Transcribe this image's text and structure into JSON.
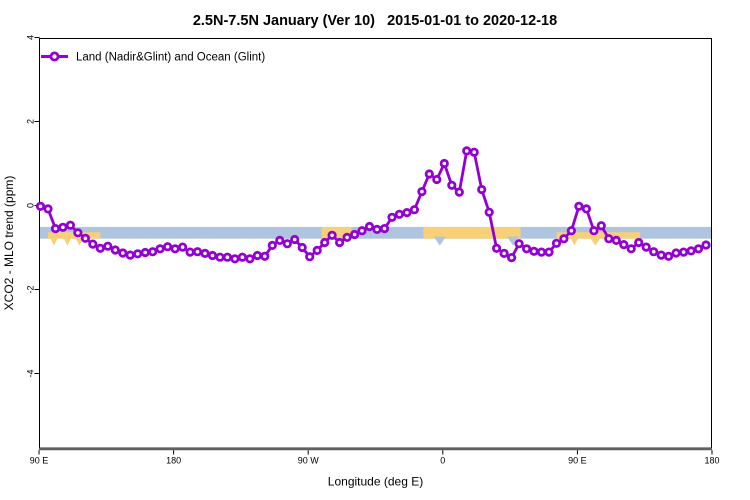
{
  "title": "2.5N-7.5N January (Ver 10)   2015-01-01 to 2020-12-18",
  "legend": {
    "label": "Land (Nadir&Glint) and Ocean (Glint)",
    "marker": "open-circle",
    "color": "#9400D3",
    "position": "top-left"
  },
  "axes": {
    "x": {
      "label": "Longitude (deg E)",
      "ticks": [
        {
          "pos": 0,
          "label": "90 E"
        },
        {
          "pos": 90,
          "label": "180"
        },
        {
          "pos": 180,
          "label": "90 W"
        },
        {
          "pos": 270,
          "label": "0"
        },
        {
          "pos": 360,
          "label": "90 E"
        },
        {
          "pos": 450,
          "label": "180"
        }
      ]
    },
    "y": {
      "label": "XCO2 - MLO trend (ppm)",
      "ticks": [
        {
          "val": 4,
          "label": "4"
        },
        {
          "val": 2,
          "label": "2"
        },
        {
          "val": 0,
          "label": "0"
        },
        {
          "val": -2,
          "label": "-2"
        },
        {
          "val": -4,
          "label": "-4"
        }
      ]
    }
  },
  "colors": {
    "series": "#9400D3",
    "ocean_band": "#AFC4DE",
    "land_band": "#F8D078",
    "bottom_axis_line": "#606060",
    "frame": "#000000"
  },
  "chart_data": {
    "type": "line",
    "title": "2.5N-7.5N January (Ver 10)   2015-01-01 to 2020-12-18",
    "xlabel": "Longitude (deg E)",
    "ylabel": "XCO2 - MLO trend (ppm)",
    "x_axis_note": "x = degrees eastward along axis from left edge; axis starts at 90E and wraps 90E -> 180 -> 90W -> 0 -> 90E -> 180",
    "xlim": [
      0,
      450
    ],
    "ylim": [
      -5.76,
      4.0
    ],
    "yticks": [
      4,
      2,
      0,
      -2,
      -4
    ],
    "grid": false,
    "legend_position": "top-left",
    "x": [
      1,
      6,
      11,
      16,
      21,
      26,
      31,
      36,
      41,
      46,
      51,
      56,
      61,
      66,
      71,
      76,
      81,
      86,
      91,
      96,
      101,
      106,
      111,
      116,
      121,
      126,
      131,
      136,
      141,
      146,
      151,
      156,
      161,
      166,
      171,
      176,
      181,
      186,
      191,
      196,
      201,
      206,
      211,
      216,
      221,
      226,
      231,
      236,
      241,
      246,
      251,
      256,
      261,
      266,
      271,
      276,
      281,
      286,
      291,
      296,
      301,
      306,
      311,
      316,
      321,
      326,
      331,
      336,
      341,
      346,
      351,
      356,
      361,
      366,
      371,
      376,
      381,
      386,
      391,
      396,
      401,
      406,
      411,
      416,
      421,
      426,
      431,
      436,
      441,
      446
    ],
    "series": [
      {
        "name": "Land (Nadir&Glint) and Ocean (Glint)",
        "color": "#9400D3",
        "marker": "open-circle",
        "values": [
          -0.02,
          -0.08,
          -0.55,
          -0.52,
          -0.47,
          -0.65,
          -0.78,
          -0.92,
          -1.02,
          -0.97,
          -1.06,
          -1.13,
          -1.18,
          -1.15,
          -1.12,
          -1.1,
          -1.03,
          -0.98,
          -1.03,
          -0.99,
          -1.11,
          -1.1,
          -1.14,
          -1.19,
          -1.23,
          -1.23,
          -1.27,
          -1.23,
          -1.27,
          -1.19,
          -1.21,
          -0.95,
          -0.83,
          -0.91,
          -0.81,
          -1.0,
          -1.22,
          -1.07,
          -0.88,
          -0.71,
          -0.88,
          -0.76,
          -0.69,
          -0.6,
          -0.5,
          -0.57,
          -0.55,
          -0.28,
          -0.21,
          -0.17,
          -0.1,
          0.33,
          0.75,
          0.62,
          1.0,
          0.48,
          0.32,
          1.3,
          1.27,
          0.38,
          -0.16,
          -1.02,
          -1.14,
          -1.24,
          -0.91,
          -1.03,
          -1.09,
          -1.11,
          -1.11,
          -0.9,
          -0.79,
          -0.6,
          -0.02,
          -0.08,
          -0.6,
          -0.48,
          -0.79,
          -0.83,
          -0.93,
          -1.03,
          -0.88,
          -0.99,
          -1.1,
          -1.18,
          -1.21,
          -1.13,
          -1.11,
          -1.08,
          -1.03,
          -0.94
        ]
      }
    ],
    "reference_band": {
      "y_top": -0.51,
      "y_bottom": -0.79,
      "ocean_color": "#AFC4DE",
      "land_color": "#F8D078",
      "land_segments": [
        {
          "d0": 6,
          "d1": 41,
          "style": "lower"
        },
        {
          "d0": 189,
          "d1": 209,
          "style": "full"
        },
        {
          "d0": 257,
          "d1": 322,
          "style": "full"
        },
        {
          "d0": 346,
          "d1": 402,
          "style": "lower"
        }
      ],
      "under_marks": [
        {
          "d0": 7,
          "d1": 13,
          "color": "land"
        },
        {
          "d0": 16,
          "d1": 22,
          "color": "land"
        },
        {
          "d0": 24,
          "d1": 30,
          "color": "land"
        },
        {
          "d0": 264,
          "d1": 272,
          "color": "ocean"
        },
        {
          "d0": 313,
          "d1": 321,
          "color": "ocean"
        },
        {
          "d0": 347,
          "d1": 353,
          "color": "land"
        },
        {
          "d0": 355,
          "d1": 361,
          "color": "land"
        },
        {
          "d0": 368,
          "d1": 376,
          "color": "land"
        }
      ]
    }
  }
}
